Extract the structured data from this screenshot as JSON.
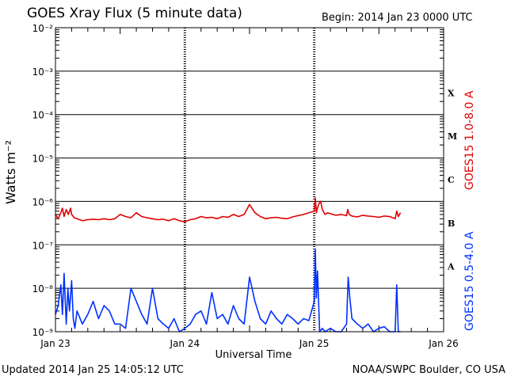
{
  "header": {
    "title": "GOES Xray Flux (5 minute data)",
    "begin": "Begin:  2014 Jan 23 0000 UTC"
  },
  "footer": {
    "updated": "Updated 2014 Jan 25 14:05:12 UTC",
    "credit": "NOAA/SWPC Boulder, CO USA"
  },
  "chart_data": {
    "type": "line",
    "ylabel": "Watts m⁻²",
    "xlabel": "Universal Time",
    "y_scale": "log",
    "ylim": [
      1e-09,
      0.01
    ],
    "y_ticks": [
      "10⁻⁹",
      "10⁻⁸",
      "10⁻⁷",
      "10⁻⁶",
      "10⁻⁵",
      "10⁻⁴",
      "10⁻³",
      "10⁻²"
    ],
    "x_ticks": [
      "Jan 23",
      "Jan 24",
      "Jan 25",
      "Jan 26"
    ],
    "x_range_hours": [
      0,
      72
    ],
    "grid": true,
    "flare_classes": [
      "A",
      "B",
      "C",
      "M",
      "X"
    ],
    "series": [
      {
        "name": "GOES15 1.0-8.0 A",
        "color": "#e00000",
        "x": [
          0,
          0.5,
          1,
          1.3,
          1.6,
          2,
          2.4,
          2.8,
          3,
          3.5,
          4,
          5,
          6,
          7,
          8,
          9,
          10,
          11,
          12,
          13,
          14,
          15,
          16,
          17,
          18,
          19,
          20,
          21,
          22,
          23,
          24,
          25,
          26,
          27,
          28,
          29,
          30,
          31,
          32,
          33,
          34,
          35,
          36,
          37,
          38,
          39,
          40,
          41,
          42,
          43,
          44,
          45,
          46,
          47,
          48,
          48.2,
          48.4,
          48.6,
          48.9,
          49.2,
          49.5,
          50,
          50.5,
          51,
          51.5,
          52,
          53,
          54,
          54.2,
          54.5,
          55,
          56,
          57,
          58,
          59,
          60,
          61,
          62,
          63,
          63.3,
          63.6,
          64
        ],
        "values": [
          5e-07,
          4e-07,
          5.5e-07,
          7e-07,
          4.5e-07,
          6.5e-07,
          5e-07,
          7e-07,
          5e-07,
          4.2e-07,
          4e-07,
          3.6e-07,
          3.8e-07,
          3.9e-07,
          3.8e-07,
          4e-07,
          3.8e-07,
          4e-07,
          5e-07,
          4.5e-07,
          4.2e-07,
          5.5e-07,
          4.5e-07,
          4.2e-07,
          4e-07,
          3.8e-07,
          3.9e-07,
          3.6e-07,
          4e-07,
          3.6e-07,
          3.4e-07,
          3.8e-07,
          4e-07,
          4.5e-07,
          4.2e-07,
          4.3e-07,
          4e-07,
          4.5e-07,
          4.3e-07,
          5e-07,
          4.5e-07,
          5e-07,
          8.5e-07,
          5.5e-07,
          4.5e-07,
          4e-07,
          4.2e-07,
          4.3e-07,
          4.1e-07,
          4e-07,
          4.4e-07,
          4.7e-07,
          5e-07,
          5.5e-07,
          6e-07,
          1.2e-06,
          5.5e-07,
          7e-07,
          9e-07,
          1e-06,
          6.5e-07,
          5e-07,
          5.5e-07,
          5.2e-07,
          5e-07,
          4.8e-07,
          5e-07,
          4.7e-07,
          6.5e-07,
          5e-07,
          4.6e-07,
          4.4e-07,
          4.8e-07,
          4.6e-07,
          4.5e-07,
          4.3e-07,
          4.6e-07,
          4.5e-07,
          4e-07,
          6e-07,
          4.5e-07,
          5.5e-07
        ]
      },
      {
        "name": "GOES15 0.5-4.0 A",
        "color": "#0030ff",
        "x": [
          0,
          0.5,
          1,
          1.3,
          1.6,
          2,
          2.3,
          2.6,
          3,
          3.3,
          3.6,
          4,
          5,
          6,
          7,
          8,
          9,
          10,
          11,
          12,
          13,
          14,
          15,
          16,
          17,
          18,
          19,
          20,
          21,
          22,
          23,
          24,
          25,
          26,
          27,
          28,
          29,
          30,
          31,
          32,
          33,
          34,
          35,
          36,
          37,
          38,
          39,
          40,
          41,
          42,
          43,
          44,
          45,
          46,
          47,
          47.5,
          48,
          48.2,
          48.4,
          48.6,
          49,
          49.5,
          50,
          51,
          52,
          53,
          54,
          54.3,
          54.6,
          55,
          56,
          57,
          58,
          59,
          60,
          61,
          62,
          63,
          63.3,
          63.6,
          64
        ],
        "values": [
          2.5e-09,
          4e-09,
          1.2e-08,
          2.5e-09,
          2.2e-08,
          1.5e-09,
          1e-08,
          3e-09,
          1.5e-08,
          2e-09,
          1.2e-09,
          3e-09,
          1.5e-09,
          2.5e-09,
          5e-09,
          2e-09,
          4e-09,
          3e-09,
          1.5e-09,
          1.5e-09,
          1.2e-09,
          1e-08,
          5e-09,
          2.5e-09,
          1.5e-09,
          1e-08,
          2e-09,
          1.5e-09,
          1.2e-09,
          2e-09,
          1e-09,
          1.2e-09,
          1.5e-09,
          2.5e-09,
          3e-09,
          1.5e-09,
          8e-09,
          2e-09,
          2.5e-09,
          1.5e-09,
          4e-09,
          2e-09,
          1.5e-09,
          1.8e-08,
          5e-09,
          2e-09,
          1.5e-09,
          3e-09,
          2e-09,
          1.5e-09,
          2.5e-09,
          2e-09,
          1.5e-09,
          2e-09,
          1.8e-09,
          3e-09,
          5e-09,
          8e-08,
          6e-09,
          2.5e-08,
          1e-09,
          1.2e-09,
          1e-09,
          1.2e-09,
          1e-09,
          1e-09,
          1.5e-09,
          1.8e-08,
          6e-09,
          2e-09,
          1.5e-09,
          1.2e-09,
          1.5e-09,
          1e-09,
          1.2e-09,
          1.3e-09,
          1e-09,
          1e-09,
          1.2e-08,
          1e-09,
          1e-09
        ]
      }
    ]
  }
}
